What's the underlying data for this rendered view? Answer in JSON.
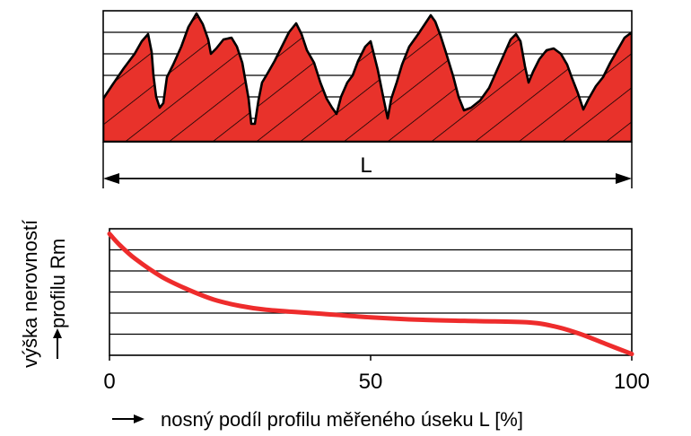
{
  "profile_diagram": {
    "length_label": "L",
    "colors": {
      "profile_fill": "#e8322b",
      "outline": "#000000"
    }
  },
  "chart_data": {
    "type": "line",
    "title": "",
    "xlabel": "nosný podíl profilu měřeného úseku L [%]",
    "ylabel_line1": "výška nerovností",
    "ylabel_line2": "profilu Rm",
    "x_ticks": [
      "0",
      "50",
      "100"
    ],
    "xlim": [
      0,
      100
    ],
    "ylim": [
      0,
      1
    ],
    "grid": true,
    "series": [
      {
        "color": "#ee2c2c",
        "x": [
          0,
          2,
          5,
          10,
          15,
          20,
          25,
          30,
          40,
          50,
          60,
          70,
          80,
          85,
          90,
          95,
          100
        ],
        "y": [
          0.96,
          0.87,
          0.76,
          0.62,
          0.52,
          0.44,
          0.39,
          0.36,
          0.33,
          0.3,
          0.28,
          0.27,
          0.26,
          0.23,
          0.17,
          0.09,
          0.01
        ]
      }
    ]
  }
}
